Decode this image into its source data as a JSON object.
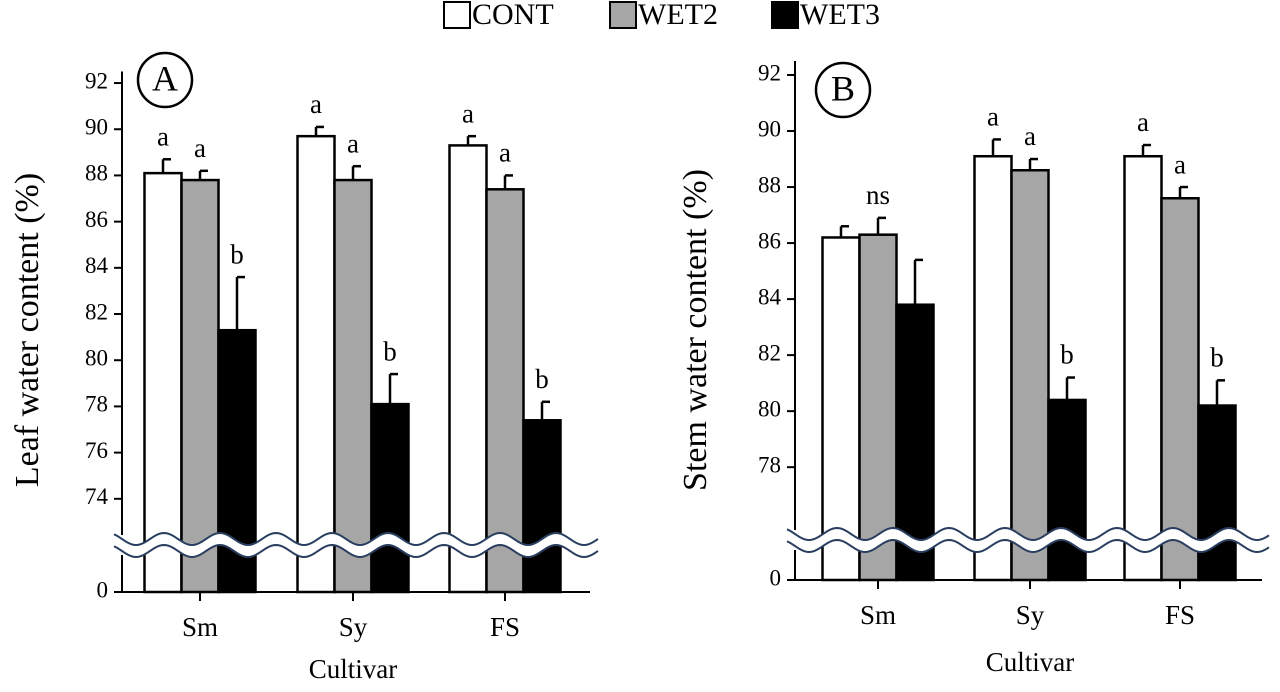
{
  "legend": [
    {
      "name": "CONT",
      "color": "#ffffff"
    },
    {
      "name": "WET2",
      "color": "#a6a6a6"
    },
    {
      "name": "WET3",
      "color": "#000000"
    }
  ],
  "chart_data": [
    {
      "type": "bar",
      "panel": "A",
      "ylabel": "Leaf water content (%)",
      "xlabel": "Cultivar",
      "categories": [
        "Sm",
        "Sy",
        "FS"
      ],
      "series": [
        {
          "values": [
            88.1,
            89.7,
            89.3
          ],
          "errors": [
            0.6,
            0.4,
            0.4
          ],
          "letters": [
            "a",
            "a",
            "a"
          ]
        },
        {
          "values": [
            87.8,
            87.8,
            87.4
          ],
          "errors": [
            0.4,
            0.6,
            0.6
          ],
          "letters": [
            "a",
            "a",
            "a"
          ]
        },
        {
          "values": [
            81.3,
            78.1,
            77.4
          ],
          "errors": [
            2.3,
            1.3,
            0.8
          ],
          "letters": [
            "b",
            "b",
            "b"
          ]
        }
      ],
      "ylim": [
        0,
        92.5
      ],
      "axis_break": [
        0,
        72
      ],
      "yticks": [
        0,
        74,
        76,
        78,
        80,
        82,
        84,
        86,
        88,
        90,
        92
      ]
    },
    {
      "type": "bar",
      "panel": "B",
      "ylabel": "Stem water content (%)",
      "xlabel": "Cultivar",
      "categories": [
        "Sm",
        "Sy",
        "FS"
      ],
      "series": [
        {
          "values": [
            86.2,
            89.1,
            89.1
          ],
          "errors": [
            0.4,
            0.6,
            0.4
          ],
          "letters": [
            null,
            "a",
            "a"
          ]
        },
        {
          "values": [
            86.3,
            88.6,
            87.6
          ],
          "errors": [
            0.6,
            0.4,
            0.4
          ],
          "letters": [
            "ns",
            "a",
            "a"
          ]
        },
        {
          "values": [
            83.8,
            80.4,
            80.2
          ],
          "errors": [
            1.6,
            0.8,
            0.9
          ],
          "letters": [
            null,
            "b",
            "b"
          ]
        }
      ],
      "ylim": [
        0,
        92.5
      ],
      "axis_break": [
        0,
        75.4
      ],
      "yticks": [
        0,
        78,
        80,
        82,
        84,
        86,
        88,
        90,
        92
      ]
    }
  ]
}
